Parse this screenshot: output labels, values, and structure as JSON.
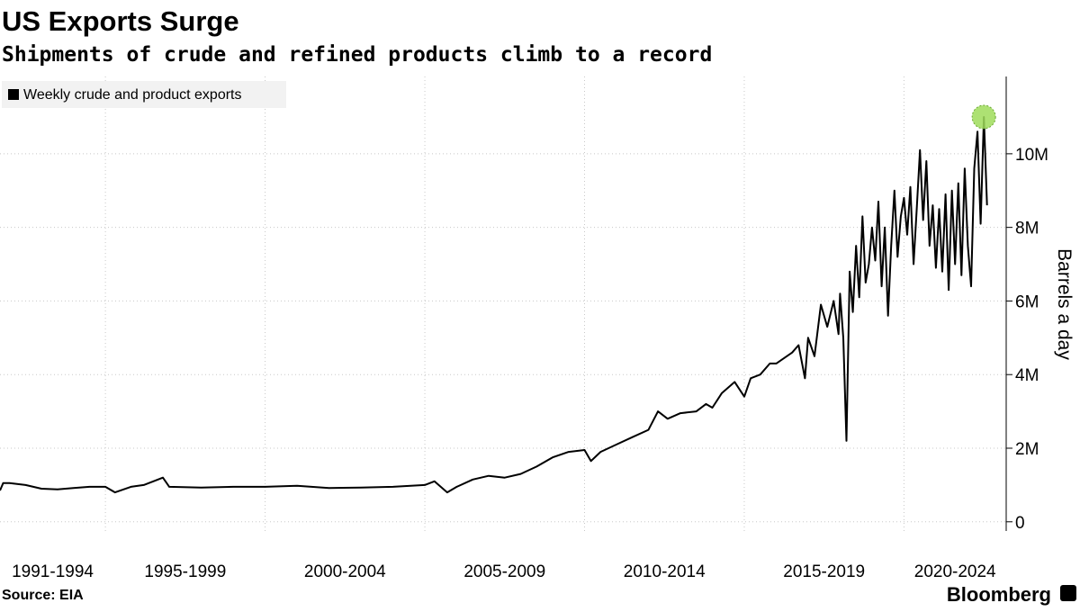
{
  "chart_data": {
    "type": "line",
    "title": "US Exports Surge",
    "subtitle": "Shipments of crude and refined products climb to a record",
    "y_axis_label": "Barrels a day",
    "source": "Source: EIA",
    "brand": "Bloomberg",
    "legend_position": "top-left",
    "grid": true,
    "highlight_max": true,
    "highlight_color": "#9fdc5a",
    "xlim": [
      1991.7,
      2023.2
    ],
    "xticks": [
      1995,
      2000,
      2005,
      2010,
      2015,
      2020
    ],
    "x_periods": [
      "1991-1994",
      "1995-1999",
      "2000-2004",
      "2005-2009",
      "2010-2014",
      "2015-2019",
      "2020-2024"
    ],
    "ylim": [
      -0.25,
      12.1
    ],
    "yticks": [
      0,
      {
        "value": 2,
        "label": "2M"
      },
      {
        "value": 4,
        "label": "4M"
      },
      {
        "value": 6,
        "label": "6M"
      },
      {
        "value": 8,
        "label": "8M"
      },
      {
        "value": 10,
        "label": "10M"
      }
    ],
    "x": [
      1991.7,
      1991.8,
      1992,
      1992.5,
      1993,
      1993.5,
      1994,
      1994.5,
      1995,
      1995.3,
      1995.8,
      1996.2,
      1996.5,
      1996.8,
      1997,
      1998,
      1999,
      2000,
      2001,
      2002,
      2003,
      2004,
      2005,
      2005.3,
      2005.7,
      2006,
      2006.5,
      2007,
      2007.5,
      2008,
      2008.5,
      2009,
      2009.5,
      2010,
      2010.2,
      2010.5,
      2011,
      2011.5,
      2012,
      2012.3,
      2012.6,
      2013,
      2013.5,
      2013.8,
      2014,
      2014.3,
      2014.7,
      2015,
      2015.2,
      2015.5,
      2015.8,
      2016,
      2016.5,
      2016.7,
      2016.9,
      2017,
      2017.2,
      2017.4,
      2017.6,
      2017.8,
      2017.95,
      2018.0,
      2018.1,
      2018.2,
      2018.3,
      2018.4,
      2018.5,
      2018.6,
      2018.7,
      2018.8,
      2018.9,
      2019,
      2019.1,
      2019.2,
      2019.3,
      2019.4,
      2019.5,
      2019.6,
      2019.7,
      2019.8,
      2019.9,
      2020.0,
      2020.1,
      2020.2,
      2020.3,
      2020.4,
      2020.5,
      2020.6,
      2020.7,
      2020.8,
      2020.9,
      2021.0,
      2021.1,
      2021.2,
      2021.3,
      2021.4,
      2021.5,
      2021.6,
      2021.7,
      2021.8,
      2021.9,
      2022.0,
      2022.1,
      2022.2,
      2022.3,
      2022.4,
      2022.5,
      2022.6
    ],
    "series": [
      {
        "name": "Weekly crude and product exports",
        "color": "#000000",
        "values": [
          0.85,
          1.05,
          1.05,
          1.0,
          0.9,
          0.88,
          0.92,
          0.95,
          0.95,
          0.8,
          0.95,
          1.0,
          1.1,
          1.2,
          0.95,
          0.93,
          0.95,
          0.95,
          0.98,
          0.92,
          0.93,
          0.95,
          1.0,
          1.1,
          0.8,
          0.95,
          1.15,
          1.25,
          1.2,
          1.3,
          1.5,
          1.75,
          1.9,
          1.95,
          1.65,
          1.9,
          2.1,
          2.3,
          2.5,
          3.0,
          2.8,
          2.95,
          3.0,
          3.2,
          3.1,
          3.5,
          3.8,
          3.4,
          3.9,
          4.0,
          4.3,
          4.3,
          4.6,
          4.8,
          3.9,
          5.0,
          4.5,
          5.9,
          5.3,
          6.0,
          5.1,
          6.2,
          5.0,
          2.2,
          6.8,
          5.7,
          7.5,
          6.1,
          8.3,
          6.5,
          7.0,
          8.0,
          7.1,
          8.7,
          6.4,
          8.0,
          5.6,
          7.5,
          9.0,
          7.2,
          8.3,
          8.8,
          7.8,
          9.1,
          7.0,
          8.5,
          10.1,
          8.2,
          9.8,
          7.5,
          8.6,
          6.9,
          8.5,
          6.8,
          8.9,
          6.3,
          9.0,
          7.0,
          9.2,
          6.7,
          9.6,
          7.5,
          6.4,
          9.6,
          10.6,
          8.1,
          11.0,
          8.6
        ]
      }
    ]
  }
}
